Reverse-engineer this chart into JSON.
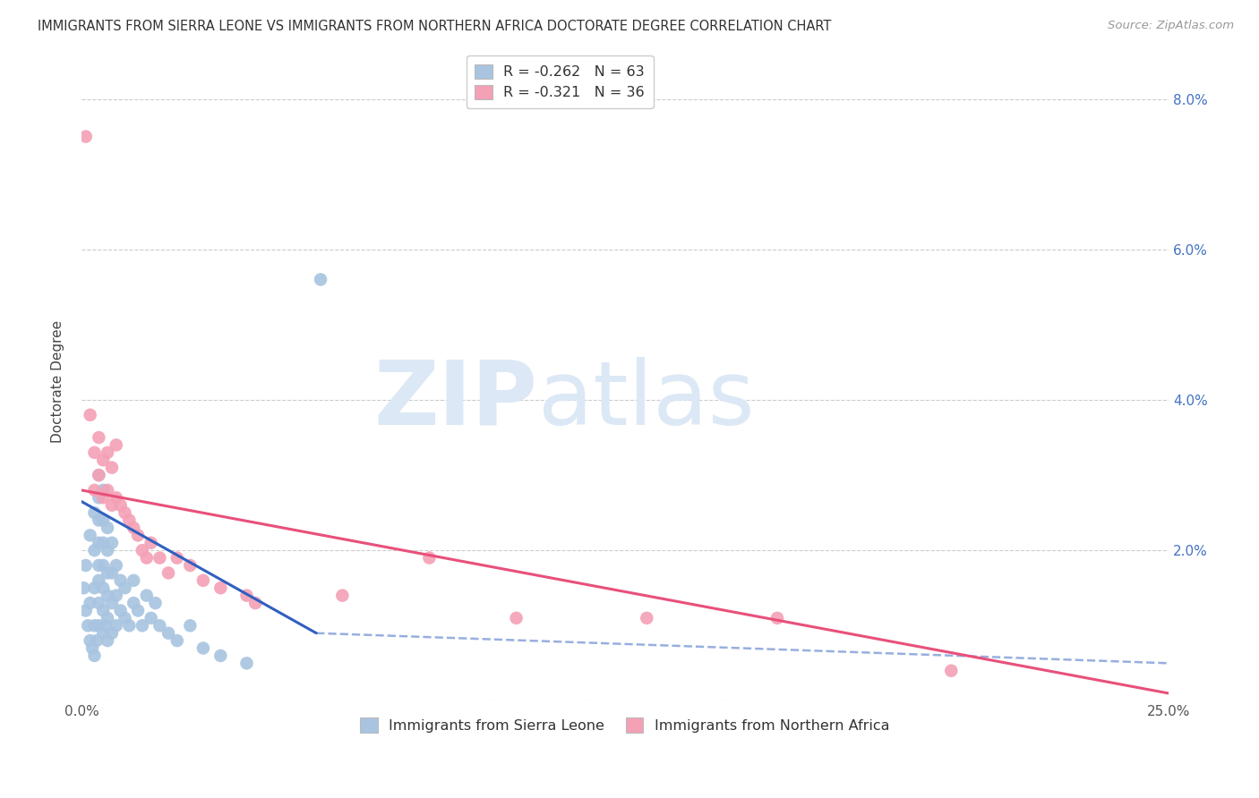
{
  "title": "IMMIGRANTS FROM SIERRA LEONE VS IMMIGRANTS FROM NORTHERN AFRICA DOCTORATE DEGREE CORRELATION CHART",
  "source": "Source: ZipAtlas.com",
  "ylabel": "Doctorate Degree",
  "xlim": [
    0.0,
    0.25
  ],
  "ylim": [
    0.0,
    0.085
  ],
  "yticks": [
    0.0,
    0.02,
    0.04,
    0.06,
    0.08
  ],
  "ytick_labels": [
    "",
    "2.0%",
    "4.0%",
    "6.0%",
    "8.0%"
  ],
  "xticks": [
    0.0,
    0.05,
    0.1,
    0.15,
    0.2,
    0.25
  ],
  "xtick_labels": [
    "0.0%",
    "",
    "",
    "",
    "",
    "25.0%"
  ],
  "legend_r1": "R = -0.262",
  "legend_n1": "N = 63",
  "legend_r2": "R = -0.321",
  "legend_n2": "N = 36",
  "series1_label": "Immigrants from Sierra Leone",
  "series2_label": "Immigrants from Northern Africa",
  "series1_color": "#a8c4e0",
  "series2_color": "#f4a0b5",
  "trend1_color": "#3060c0",
  "trend2_color": "#e8507a",
  "watermark_zip": "ZIP",
  "watermark_atlas": "atlas",
  "watermark_color": "#dce8f5",
  "background_color": "#ffffff",
  "title_fontsize": 10.5,
  "series1_x": [
    0.0005,
    0.001,
    0.001,
    0.0015,
    0.002,
    0.002,
    0.002,
    0.0025,
    0.003,
    0.003,
    0.003,
    0.003,
    0.003,
    0.0035,
    0.004,
    0.004,
    0.004,
    0.004,
    0.004,
    0.004,
    0.004,
    0.004,
    0.005,
    0.005,
    0.005,
    0.005,
    0.005,
    0.005,
    0.005,
    0.0055,
    0.006,
    0.006,
    0.006,
    0.006,
    0.006,
    0.006,
    0.007,
    0.007,
    0.007,
    0.007,
    0.008,
    0.008,
    0.008,
    0.009,
    0.009,
    0.01,
    0.01,
    0.011,
    0.012,
    0.012,
    0.013,
    0.014,
    0.015,
    0.016,
    0.017,
    0.018,
    0.02,
    0.022,
    0.025,
    0.028,
    0.032,
    0.038,
    0.055
  ],
  "series1_y": [
    0.015,
    0.012,
    0.018,
    0.01,
    0.008,
    0.013,
    0.022,
    0.007,
    0.006,
    0.01,
    0.015,
    0.02,
    0.025,
    0.008,
    0.01,
    0.013,
    0.016,
    0.018,
    0.021,
    0.024,
    0.027,
    0.03,
    0.009,
    0.012,
    0.015,
    0.018,
    0.021,
    0.024,
    0.028,
    0.01,
    0.008,
    0.011,
    0.014,
    0.017,
    0.02,
    0.023,
    0.009,
    0.013,
    0.017,
    0.021,
    0.01,
    0.014,
    0.018,
    0.012,
    0.016,
    0.011,
    0.015,
    0.01,
    0.013,
    0.016,
    0.012,
    0.01,
    0.014,
    0.011,
    0.013,
    0.01,
    0.009,
    0.008,
    0.01,
    0.007,
    0.006,
    0.005,
    0.056
  ],
  "series2_x": [
    0.001,
    0.002,
    0.003,
    0.003,
    0.004,
    0.004,
    0.005,
    0.005,
    0.006,
    0.006,
    0.007,
    0.007,
    0.008,
    0.008,
    0.009,
    0.01,
    0.011,
    0.012,
    0.013,
    0.014,
    0.015,
    0.016,
    0.018,
    0.02,
    0.022,
    0.025,
    0.028,
    0.032,
    0.038,
    0.04,
    0.06,
    0.08,
    0.1,
    0.13,
    0.16,
    0.2
  ],
  "series2_y": [
    0.075,
    0.038,
    0.028,
    0.033,
    0.03,
    0.035,
    0.027,
    0.032,
    0.028,
    0.033,
    0.026,
    0.031,
    0.027,
    0.034,
    0.026,
    0.025,
    0.024,
    0.023,
    0.022,
    0.02,
    0.019,
    0.021,
    0.019,
    0.017,
    0.019,
    0.018,
    0.016,
    0.015,
    0.014,
    0.013,
    0.014,
    0.019,
    0.011,
    0.011,
    0.011,
    0.004
  ],
  "trend1_x_start": 0.0,
  "trend1_x_end": 0.054,
  "trend1_y_start": 0.0265,
  "trend1_y_end": 0.009,
  "trend1_dash_x_end": 0.25,
  "trend1_dash_y_end": 0.005,
  "trend2_x_start": 0.0,
  "trend2_x_end": 0.25,
  "trend2_y_start": 0.028,
  "trend2_y_end": 0.001
}
